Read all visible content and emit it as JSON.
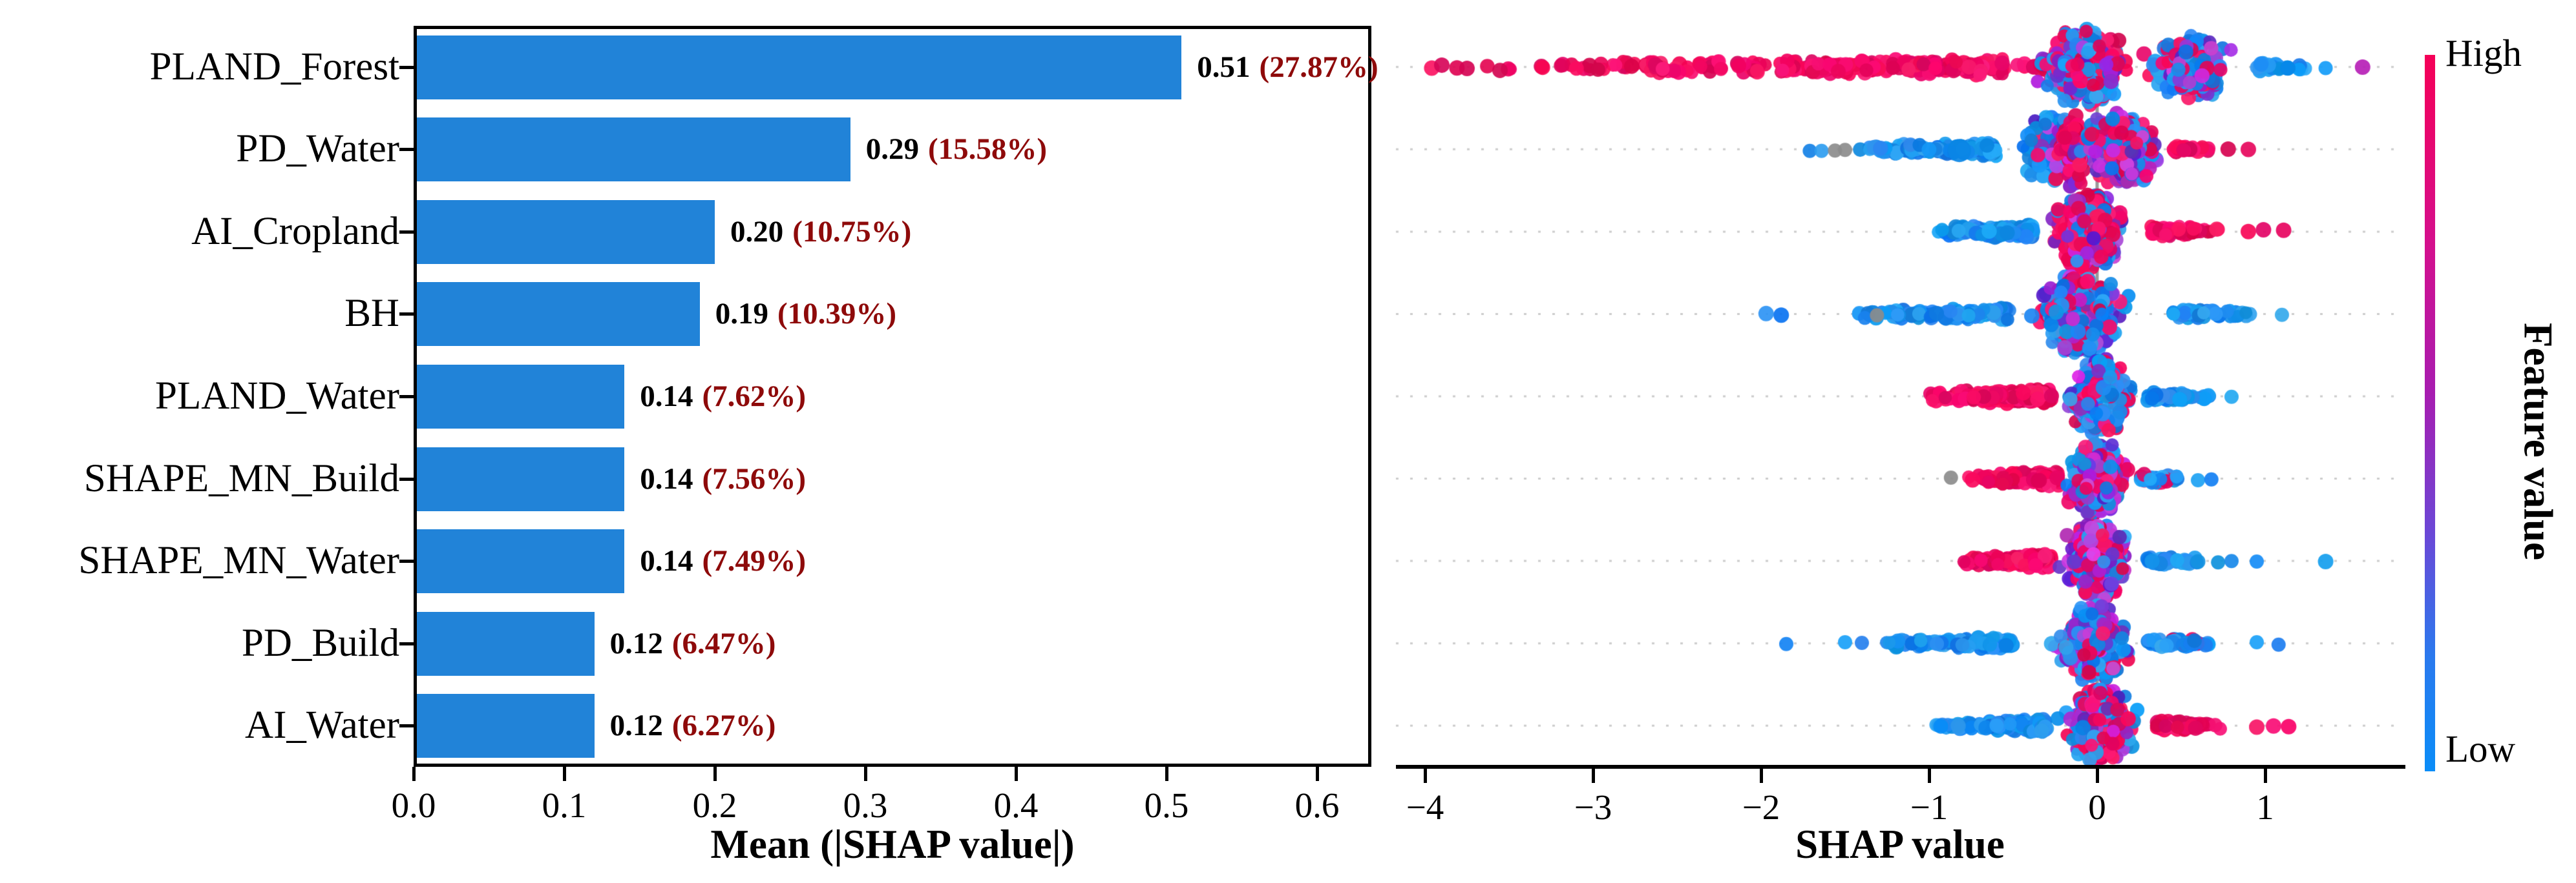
{
  "chart_data": [
    {
      "type": "bar",
      "orientation": "horizontal",
      "xlabel": "Mean (|SHAP value|)",
      "xticks": [
        "0.0",
        "0.1",
        "0.2",
        "0.3",
        "0.4",
        "0.5",
        "0.6"
      ],
      "xtick_values": [
        0.0,
        0.1,
        0.2,
        0.3,
        0.4,
        0.5,
        0.6
      ],
      "xlim": [
        0,
        0.636
      ],
      "bar_color": "#2183d8",
      "value_color": "#000000",
      "pct_color": "#8e0a0a",
      "categories": [
        "PLAND_Forest",
        "PD_Water",
        "AI_Cropland",
        "BH",
        "PLAND_Water",
        "SHAPE_MN_Build",
        "SHAPE_MN_Water",
        "PD_Build",
        "AI_Water"
      ],
      "values": [
        0.51,
        0.29,
        0.2,
        0.19,
        0.14,
        0.14,
        0.14,
        0.12,
        0.12
      ],
      "values_display": [
        "0.51",
        "0.29",
        "0.20",
        "0.19",
        "0.14",
        "0.14",
        "0.14",
        "0.12",
        "0.12"
      ],
      "percent_labels": [
        "27.87%",
        "15.58%",
        "10.75%",
        "10.39%",
        "7.62%",
        "7.56%",
        "7.49%",
        "6.47%",
        "6.27%"
      ]
    },
    {
      "type": "scatter",
      "subtype": "beeswarm",
      "xlabel": "SHAP value",
      "xticks": [
        "−4",
        "−3",
        "−2",
        "−1",
        "0",
        "1"
      ],
      "xtick_values": [
        -4,
        -3,
        -2,
        -1,
        0,
        1
      ],
      "xlim": [
        -4.18,
        1.8
      ],
      "zero_line": 0,
      "gridline_color": "#cccccc",
      "zero_line_color": "#999999",
      "point_colors": {
        "crimson": "#f20057",
        "blue": "#0b8df8",
        "purple": "#8a3fd1",
        "purpleDark": "#a020a0",
        "gray": "#8c8c8c"
      },
      "colorbar": {
        "label": "Feature value",
        "high": "High",
        "low": "Low",
        "top_color": "#f50057",
        "mid_color": "#a81cb0",
        "bottom_color": "#0a8df8"
      },
      "rows": [
        {
          "feature": "PLAND_Forest",
          "components": [
            {
              "k": "dots",
              "xs": [
                -3.96,
                -3.9,
                -3.81,
                -3.75
              ],
              "c": "crimson",
              "r": 12
            },
            {
              "k": "strip",
              "x0": -3.67,
              "x1": -0.55,
              "n": 280,
              "c": "crimson",
              "j0": 7,
              "j1": 15,
              "dense": "end"
            },
            {
              "k": "strip",
              "x0": -0.55,
              "x1": 0.05,
              "n": 70,
              "c": "crimson",
              "j0": 14,
              "j1": 14,
              "dense": "end"
            },
            {
              "k": "lobe",
              "cx": -0.08,
              "sx": 0.22,
              "n": 440,
              "amp": 62,
              "mix": {
                "c": 0.4,
                "b": 0.38,
                "p": 0.22
              }
            },
            {
              "k": "lobe",
              "cx": 0.55,
              "sx": 0.2,
              "n": 300,
              "amp": 50,
              "mix": {
                "b": 0.56,
                "p": 0.26,
                "c": 0.18
              }
            },
            {
              "k": "strip",
              "x0": 0.95,
              "x1": 1.3,
              "n": 28,
              "c": "blue",
              "j0": 8,
              "j1": 5,
              "dense": "start"
            },
            {
              "k": "dots",
              "xs": [
                1.36
              ],
              "c": "blue",
              "r": 11
            },
            {
              "k": "dots",
              "xs": [
                1.58
              ],
              "c": "purpleDark",
              "r": 12
            }
          ]
        },
        {
          "feature": "PD_Water",
          "components": [
            {
              "k": "dots",
              "xs": [
                -1.71,
                -1.64
              ],
              "c": "blue",
              "r": 11
            },
            {
              "k": "dots",
              "xs": [
                -1.56,
                -1.5
              ],
              "c": "gray",
              "r": 11
            },
            {
              "k": "strip",
              "x0": -1.47,
              "x1": -0.6,
              "n": 130,
              "c": "blue",
              "j0": 6,
              "j1": 11,
              "dense": "end"
            },
            {
              "k": "dots",
              "xs": [
                -0.82
              ],
              "c": "blue",
              "r": 18
            },
            {
              "k": "lobe",
              "cx": -0.25,
              "sx": 0.17,
              "n": 270,
              "amp": 52,
              "mix": {
                "b": 0.75,
                "p": 0.15,
                "c": 0.1
              }
            },
            {
              "k": "lobe",
              "cx": -0.15,
              "sx": 0.09,
              "n": 80,
              "amp": 60,
              "mix": {
                "c": 0.75,
                "p": 0.25
              }
            },
            {
              "k": "lobe",
              "cx": 0.15,
              "sx": 0.19,
              "n": 410,
              "amp": 60,
              "mix": {
                "p": 0.38,
                "c": 0.34,
                "b": 0.28
              }
            },
            {
              "k": "strip",
              "x0": 0.45,
              "x1": 0.68,
              "n": 25,
              "c": "crimson",
              "j0": 9,
              "j1": 6,
              "dense": "start"
            },
            {
              "k": "dots",
              "xs": [
                0.78,
                0.9
              ],
              "c": "crimson",
              "r": 12
            }
          ]
        },
        {
          "feature": "AI_Cropland",
          "components": [
            {
              "k": "strip",
              "x0": -1.0,
              "x1": -0.38,
              "n": 110,
              "c": "blue",
              "j0": 6,
              "j1": 12,
              "dense": "end"
            },
            {
              "k": "lobe",
              "cx": -0.04,
              "sx": 0.17,
              "n": 550,
              "amp": 62,
              "mix": {
                "c": 0.55,
                "p": 0.25,
                "b": 0.2
              }
            },
            {
              "k": "strip",
              "x0": 0.32,
              "x1": 0.75,
              "n": 55,
              "c": "crimson",
              "j0": 11,
              "j1": 6,
              "dense": "start"
            },
            {
              "k": "dots",
              "xs": [
                0.9,
                0.99,
                1.11
              ],
              "c": "crimson",
              "r": 12
            }
          ]
        },
        {
          "feature": "BH",
          "components": [
            {
              "k": "dots",
              "xs": [
                -1.97,
                -1.88
              ],
              "c": "blue",
              "r": 12
            },
            {
              "k": "strip",
              "x0": -1.5,
              "x1": -0.52,
              "n": 120,
              "c": "blue",
              "j0": 6,
              "j1": 12,
              "dense": "end"
            },
            {
              "k": "dots",
              "xs": [
                -1.31
              ],
              "c": "gray",
              "r": 11
            },
            {
              "k": "lobe",
              "cx": -0.1,
              "sx": 0.2,
              "n": 570,
              "amp": 62,
              "mix": {
                "b": 0.55,
                "c": 0.25,
                "p": 0.2
              }
            },
            {
              "k": "strip",
              "x0": 0.45,
              "x1": 1.0,
              "n": 50,
              "c": "blue",
              "j0": 10,
              "j1": 5,
              "dense": "start"
            },
            {
              "k": "dots",
              "xs": [
                1.1
              ],
              "c": "blue",
              "r": 11
            }
          ]
        },
        {
          "feature": "PLAND_Water",
          "components": [
            {
              "k": "strip",
              "x0": -1.05,
              "x1": -0.27,
              "n": 190,
              "c": "crimson",
              "j0": 8,
              "j1": 14,
              "dense": "end"
            },
            {
              "k": "lobe",
              "cx": 0.02,
              "sx": 0.15,
              "n": 450,
              "amp": 58,
              "mix": {
                "b": 0.6,
                "c": 0.22,
                "p": 0.18
              }
            },
            {
              "k": "strip",
              "x0": 0.3,
              "x1": 0.7,
              "n": 40,
              "c": "blue",
              "j0": 9,
              "j1": 5,
              "dense": "start"
            },
            {
              "k": "dots",
              "xs": [
                0.8
              ],
              "c": "blue",
              "r": 11
            }
          ]
        },
        {
          "feature": "SHAPE_MN_Build",
          "components": [
            {
              "k": "dots",
              "xs": [
                -0.87
              ],
              "c": "gray",
              "r": 11
            },
            {
              "k": "strip",
              "x0": -0.78,
              "x1": -0.22,
              "n": 130,
              "c": "crimson",
              "j0": 7,
              "j1": 13,
              "dense": "end"
            },
            {
              "k": "lobe",
              "cx": 0.0,
              "sx": 0.14,
              "n": 490,
              "amp": 60,
              "mix": {
                "p": 0.4,
                "c": 0.34,
                "b": 0.26
              }
            },
            {
              "k": "strip",
              "x0": 0.26,
              "x1": 0.52,
              "n": 40,
              "c": "mixBlue",
              "j0": 10,
              "j1": 6,
              "dense": "start"
            },
            {
              "k": "dots",
              "xs": [
                0.6,
                0.68
              ],
              "c": "blue",
              "r": 11
            }
          ]
        },
        {
          "feature": "SHAPE_MN_Water",
          "components": [
            {
              "k": "strip",
              "x0": -0.84,
              "x1": -0.27,
              "n": 130,
              "c": "crimson",
              "j0": 7,
              "j1": 13,
              "dense": "end"
            },
            {
              "k": "lobe",
              "cx": 0.0,
              "sx": 0.15,
              "n": 500,
              "amp": 60,
              "mix": {
                "p": 0.42,
                "c": 0.32,
                "b": 0.26
              }
            },
            {
              "k": "strip",
              "x0": 0.3,
              "x1": 0.62,
              "n": 45,
              "c": "blue",
              "j0": 10,
              "j1": 6,
              "dense": "start"
            },
            {
              "k": "dots",
              "xs": [
                0.72,
                0.8,
                0.95
              ],
              "c": "blue",
              "r": 11
            },
            {
              "k": "dots",
              "xs": [
                1.36
              ],
              "c": "blue",
              "r": 12
            }
          ]
        },
        {
          "feature": "PD_Build",
          "components": [
            {
              "k": "dots",
              "xs": [
                -1.85,
                -1.5,
                -1.4
              ],
              "c": "blue",
              "r": 11
            },
            {
              "k": "strip",
              "x0": -1.3,
              "x1": -0.5,
              "n": 110,
              "c": "blue",
              "j0": 6,
              "j1": 11,
              "dense": "end"
            },
            {
              "k": "lobe",
              "cx": -0.02,
              "sx": 0.17,
              "n": 510,
              "amp": 60,
              "mix": {
                "b": 0.46,
                "p": 0.3,
                "c": 0.24
              }
            },
            {
              "k": "strip",
              "x0": 0.3,
              "x1": 0.8,
              "n": 50,
              "c": "mixBlue",
              "j0": 9,
              "j1": 6,
              "dense": "start"
            },
            {
              "k": "dots",
              "xs": [
                0.95,
                1.08
              ],
              "c": "blue",
              "r": 11
            }
          ]
        },
        {
          "feature": "AI_Water",
          "components": [
            {
              "k": "strip",
              "x0": -1.0,
              "x1": -0.3,
              "n": 115,
              "c": "blue",
              "j0": 6,
              "j1": 12,
              "dense": "end"
            },
            {
              "k": "lobe",
              "cx": 0.02,
              "sx": 0.16,
              "n": 500,
              "amp": 60,
              "mix": {
                "c": 0.46,
                "b": 0.29,
                "p": 0.25
              }
            },
            {
              "k": "strip",
              "x0": 0.35,
              "x1": 0.8,
              "n": 55,
              "c": "crimson",
              "j0": 10,
              "j1": 6,
              "dense": "start"
            },
            {
              "k": "dots",
              "xs": [
                0.95,
                1.05,
                1.14
              ],
              "c": "crimson",
              "r": 12
            }
          ]
        }
      ]
    }
  ]
}
